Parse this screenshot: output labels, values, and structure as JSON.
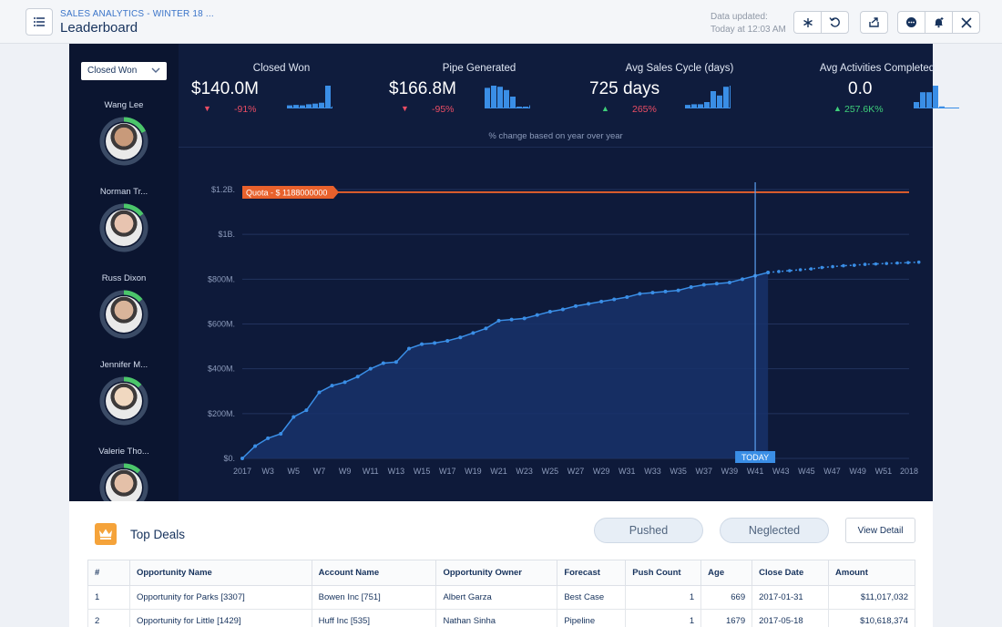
{
  "header": {
    "app_subtitle": "SALES ANALYTICS - WINTER 18 ...",
    "page_title": "Leaderboard",
    "data_updated_label": "Data updated:",
    "data_updated_time": "Today at 12:03 AM"
  },
  "leaderboard": {
    "selected_metric": "Closed Won",
    "people": [
      {
        "name": "Wang Lee",
        "progress": 0.18
      },
      {
        "name": "Norman Tr...",
        "progress": 0.15
      },
      {
        "name": "Russ Dixon",
        "progress": 0.14
      },
      {
        "name": "Jennifer M...",
        "progress": 0.13
      },
      {
        "name": "Valerie Tho...",
        "progress": 0.12
      }
    ]
  },
  "kpis": [
    {
      "title": "Closed Won",
      "value": "$140.0M",
      "change": "-91%",
      "direction": "down",
      "spark": [
        0.1,
        0.12,
        0.1,
        0.15,
        0.18,
        0.22,
        1.0,
        0.05
      ]
    },
    {
      "title": "Pipe Generated",
      "value": "$166.8M",
      "change": "-95%",
      "direction": "down",
      "spark": [
        0.9,
        1.0,
        0.95,
        0.8,
        0.5,
        0,
        0,
        0.1
      ]
    },
    {
      "title": "Avg Sales Cycle (days)",
      "value": "725 days",
      "change": "265%",
      "direction": "up",
      "spark": [
        0.12,
        0.15,
        0.15,
        0.25,
        0.75,
        0.55,
        0.95,
        1.0
      ]
    },
    {
      "title": "Avg Activities Completed",
      "value": "0.0",
      "change": "257.6K%",
      "direction": "up",
      "spark": [
        0.25,
        0.7,
        0.7,
        1.0,
        0.05
      ]
    }
  ],
  "kpi_note": "% change based on year over year",
  "colors": {
    "accent": "#3a8ee6",
    "down": "#ea4d64",
    "up": "#3ecf7a",
    "quota": "#e8612c"
  },
  "chart_data": {
    "type": "line",
    "quota_label": "Quota - $ 1188000000",
    "quota_value": 1188000000,
    "today_label": "TODAY",
    "today_week": 41,
    "ylim": [
      0,
      1200000000
    ],
    "y_ticks": [
      0,
      200000000,
      400000000,
      600000000,
      800000000,
      1000000000,
      1200000000
    ],
    "y_tick_labels": [
      "$0.",
      "$200M.",
      "$400M.",
      "$600M.",
      "$800M.",
      "$1B.",
      "$1.2B."
    ],
    "x_tick_labels": [
      "2017",
      "W3",
      "W5",
      "W7",
      "W9",
      "W11",
      "W13",
      "W15",
      "W17",
      "W19",
      "W21",
      "W23",
      "W25",
      "W27",
      "W29",
      "W31",
      "W33",
      "W35",
      "W37",
      "W39",
      "W41",
      "W43",
      "W45",
      "W47",
      "W49",
      "W51",
      "2018"
    ],
    "actual": [
      0,
      55,
      90,
      110,
      185,
      215,
      295,
      325,
      340,
      365,
      400,
      425,
      430,
      490,
      510,
      515,
      525,
      540,
      560,
      580,
      615,
      620,
      625,
      640,
      655,
      665,
      680,
      690,
      700,
      710,
      720,
      735,
      740,
      745,
      750,
      765,
      775,
      780,
      785,
      800,
      815,
      830
    ],
    "forecast": [
      830,
      834,
      838,
      842,
      846,
      852,
      856,
      860,
      862,
      866,
      868,
      870,
      872,
      874,
      876
    ]
  },
  "top_deals": {
    "title": "Top Deals",
    "pushed_label": "Pushed",
    "neglected_label": "Neglected",
    "view_detail_label": "View Detail",
    "columns": [
      "#",
      "Opportunity Name",
      "Account Name",
      "Opportunity Owner",
      "Forecast",
      "Push Count",
      "Age",
      "Close Date",
      "Amount"
    ],
    "rows": [
      [
        "1",
        "Opportunity for Parks [3307]",
        "Bowen Inc [751]",
        "Albert Garza",
        "Best Case",
        "1",
        "669",
        "2017-01-31",
        "$11,017,032"
      ],
      [
        "2",
        "Opportunity for Little [1429]",
        "Huff Inc [535]",
        "Nathan Sinha",
        "Pipeline",
        "1",
        "1679",
        "2017-05-18",
        "$10,618,374"
      ]
    ]
  }
}
